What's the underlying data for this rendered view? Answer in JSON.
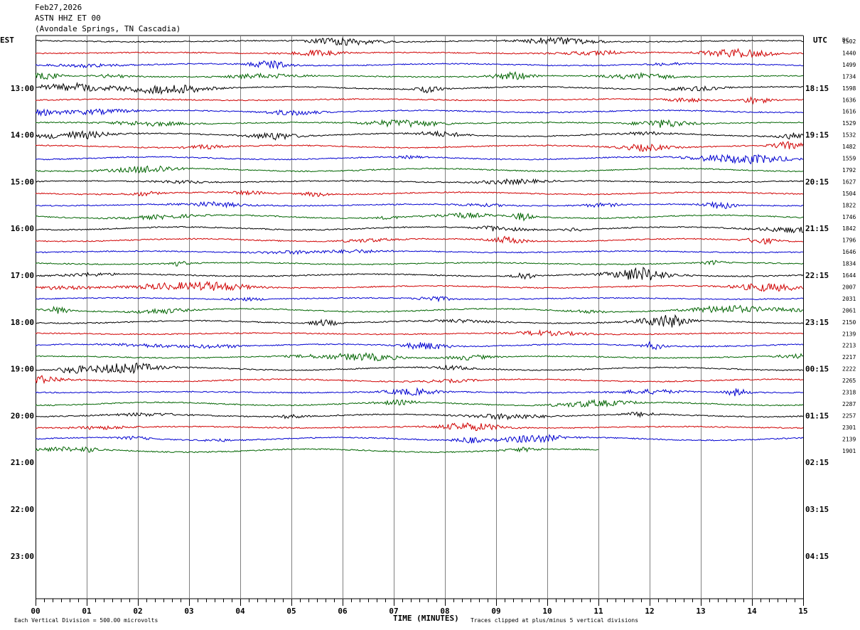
{
  "header": {
    "date": "Feb27,2026",
    "station": "ASTN HHZ ET 00",
    "location": "(Avondale Springs, TN Cascadia)"
  },
  "left_tz": "EST",
  "right_tz": "UTC",
  "dc_header": "DC",
  "footer": {
    "scale_note": "Each Vertical Division =  500.00 microvolts",
    "xlabel": "TIME (MINUTES)",
    "clip_note": "Traces clipped at plus/minus 5 vertical divisions"
  },
  "colors": {
    "trace_cycle": [
      "#000000",
      "#d00000",
      "#0000d0",
      "#006400"
    ],
    "grid": "#808080",
    "background": "#ffffff"
  },
  "chart_data": {
    "type": "line",
    "title": "ASTN HHZ ET 00",
    "xlabel": "TIME (MINUTES)",
    "xlim": [
      0,
      15
    ],
    "x_ticks": [
      "00",
      "01",
      "02",
      "03",
      "04",
      "05",
      "06",
      "07",
      "08",
      "09",
      "10",
      "11",
      "12",
      "13",
      "14",
      "15"
    ],
    "minutes_per_trace": 15,
    "traces_per_hour": 4,
    "left_hour_labels": [
      "13:00",
      "14:00",
      "15:00",
      "16:00",
      "17:00",
      "18:00",
      "19:00",
      "20:00",
      "21:00",
      "22:00",
      "23:00"
    ],
    "right_hour_labels": [
      "18:15",
      "19:15",
      "20:15",
      "21:15",
      "22:15",
      "23:15",
      "00:15",
      "01:15",
      "02:15",
      "03:15",
      "04:15"
    ],
    "dc_offsets": [
      "1502",
      "1440",
      "1499",
      "1734",
      "1598",
      "1636",
      "1616",
      "1529",
      "1532",
      "1482",
      "1559",
      "1792",
      "1627",
      "1504",
      "1822",
      "1746",
      "1842",
      "1796",
      "1646",
      "1834",
      "1644",
      "2007",
      "2031",
      "2061",
      "2150",
      "2139",
      "2213",
      "2217",
      "2222",
      "2265",
      "2318",
      "2287",
      "2257",
      "2301",
      "2139",
      "1901"
    ],
    "trace_count": 36,
    "last_trace_end_minute": 11.0,
    "grid": true
  }
}
